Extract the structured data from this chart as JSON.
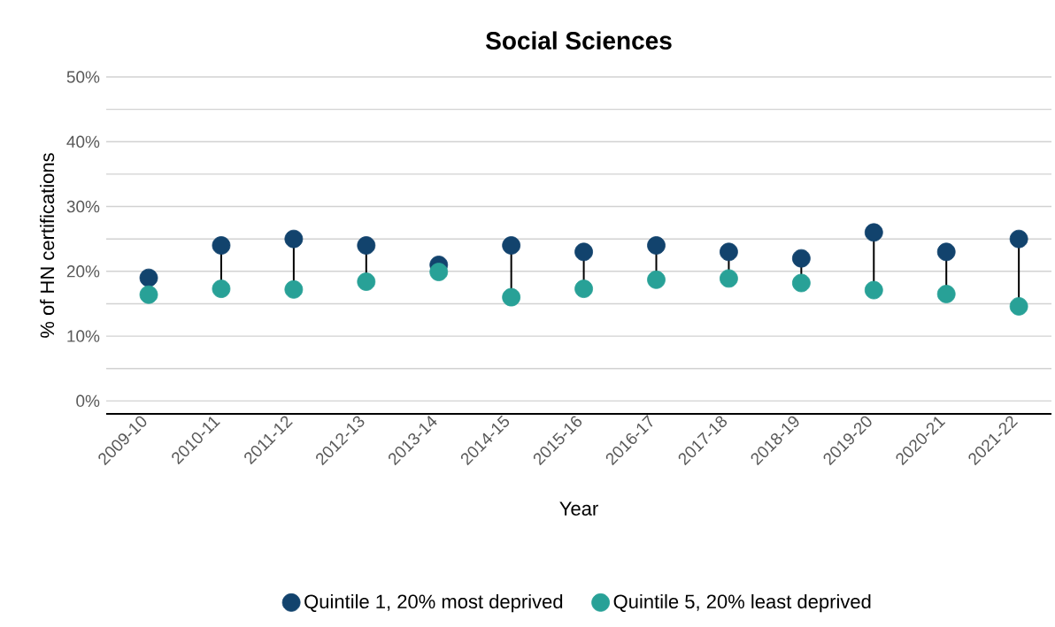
{
  "chart_data": {
    "type": "scatter",
    "title": "Social Sciences",
    "xlabel": "Year",
    "ylabel": "% of HN certifications",
    "categories": [
      "2009-10",
      "2010-11",
      "2011-12",
      "2012-13",
      "2013-14",
      "2014-15",
      "2015-16",
      "2016-17",
      "2017-18",
      "2018-19",
      "2019-20",
      "2020-21",
      "2021-22"
    ],
    "series": [
      {
        "name": "Quintile 1, 20% most deprived",
        "color": "#12436d",
        "values": [
          19,
          24,
          25,
          24,
          21,
          24,
          23,
          24,
          23,
          22,
          26,
          23,
          25
        ]
      },
      {
        "name": "Quintile 5, 20% least deprived",
        "color": "#28a197",
        "values": [
          16.4,
          17.3,
          17.2,
          18.4,
          19.9,
          16.0,
          17.3,
          18.7,
          18.9,
          18.2,
          17.1,
          16.5,
          14.6
        ]
      }
    ],
    "ylim": [
      -2,
      50
    ],
    "yticks": [
      {
        "value": 0,
        "label": "0%"
      },
      {
        "value": 5,
        "label": null
      },
      {
        "value": 10,
        "label": "10%"
      },
      {
        "value": 15,
        "label": null
      },
      {
        "value": 20,
        "label": "20%"
      },
      {
        "value": 25,
        "label": null
      },
      {
        "value": 30,
        "label": "30%"
      },
      {
        "value": 35,
        "label": null
      },
      {
        "value": 40,
        "label": "40%"
      },
      {
        "value": 45,
        "label": null
      },
      {
        "value": 50,
        "label": "50%"
      }
    ],
    "grid": "y",
    "legend": "bottom",
    "marker": "circle"
  }
}
